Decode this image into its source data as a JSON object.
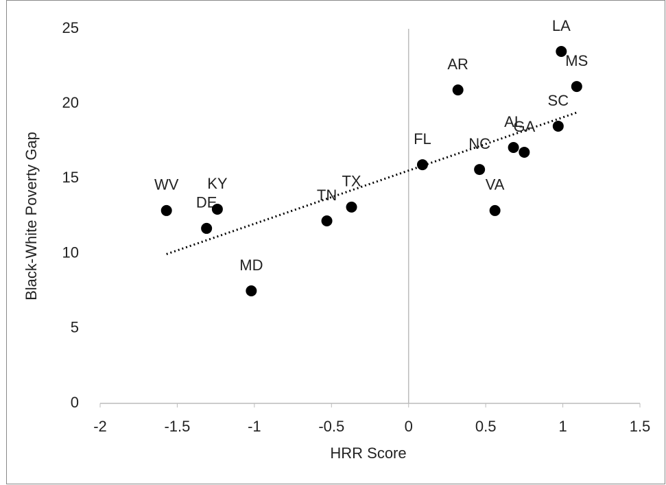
{
  "chart_data": {
    "type": "scatter",
    "x_label": "HRR Score",
    "y_label": "Black-White Poverty Gap",
    "labels": [
      "WV",
      "DE",
      "KY",
      "MD",
      "TN",
      "TX",
      "FL",
      "AR",
      "NC",
      "VA",
      "AL",
      "GA",
      "SC",
      "LA",
      "MS"
    ],
    "x": [
      -1.57,
      -1.31,
      -1.24,
      -1.02,
      -0.53,
      -0.37,
      0.09,
      0.32,
      0.46,
      0.56,
      0.68,
      0.75,
      0.97,
      0.99,
      1.09
    ],
    "values": [
      12.87,
      11.68,
      12.96,
      7.51,
      12.18,
      13.1,
      15.93,
      20.92,
      15.61,
      12.87,
      17.08,
      16.76,
      18.5,
      23.49,
      21.15
    ],
    "color": "#000000",
    "trendline": "linear",
    "xlim": [
      -2,
      1.5
    ],
    "xticks": [
      -2,
      -1.5,
      -1,
      -0.5,
      0,
      0.5,
      1,
      1.5
    ],
    "ylim": [
      0,
      25
    ],
    "yticks": [
      0,
      5,
      10,
      15,
      20,
      25
    ],
    "grid": false
  }
}
